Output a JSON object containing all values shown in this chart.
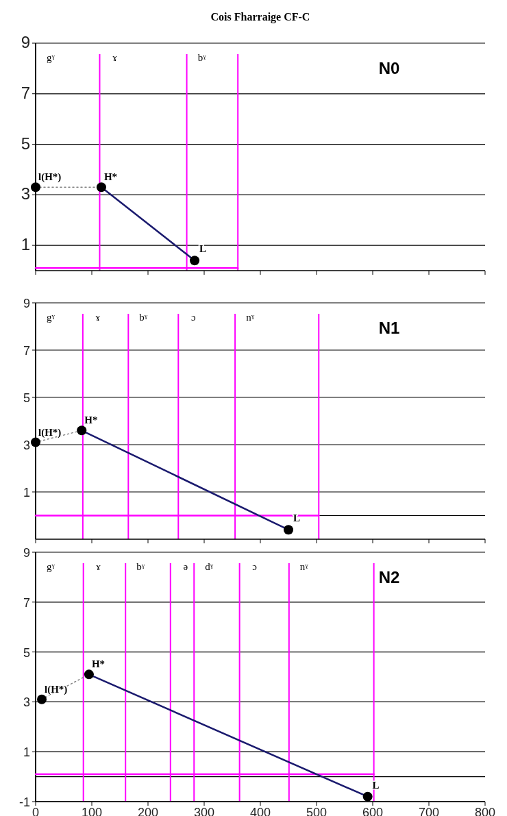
{
  "chart_data": [
    {
      "type": "line",
      "title": "Cois Fharraige CF-C",
      "subtitle": "N0",
      "xlim": [
        0,
        800
      ],
      "xticks": [
        0,
        100,
        200,
        300,
        400,
        500,
        600,
        700,
        800
      ],
      "ylim": [
        0,
        9
      ],
      "yticks": [
        1,
        3,
        5,
        7,
        9
      ],
      "grid": "y",
      "tick_labels": "y",
      "series": [
        {
          "color": "#ff00ff",
          "x": [
            0,
            360
          ],
          "values": [
            0.1,
            0.1
          ],
          "marker": "none",
          "line_style": "solid"
        },
        {
          "color": "#808080",
          "x": [
            0,
            117
          ],
          "values": [
            3.3,
            3.3
          ],
          "marker": "none",
          "line_style": "dotted"
        },
        {
          "color": "#1a1a6e",
          "x": [
            117,
            283
          ],
          "values": [
            3.3,
            0.4
          ],
          "marker": "none",
          "line_style": "solid"
        },
        {
          "type": "scatter",
          "color": "#000000",
          "x": [
            0,
            117,
            283
          ],
          "values": [
            3.3,
            3.3,
            0.4
          ],
          "marker": "circle"
        }
      ],
      "ref_lines": [
        {
          "axis": "x",
          "value": 0,
          "color": "#000000",
          "label": "gˠ"
        },
        {
          "axis": "x",
          "value": 114,
          "color": "#ff00ff",
          "label": "ɤ"
        },
        {
          "axis": "x",
          "value": 269,
          "color": "#ff00ff",
          "label": "bˠ"
        },
        {
          "axis": "x",
          "value": 360,
          "color": "#ff00ff"
        }
      ],
      "annotations": [
        {
          "text": "l(H*)",
          "x": 0,
          "y": 3.3
        },
        {
          "text": "H*",
          "x": 117,
          "y": 3.3
        },
        {
          "text": "L",
          "x": 283,
          "y": 0.4
        }
      ]
    },
    {
      "type": "line",
      "subtitle": "N1",
      "xlim": [
        0,
        800
      ],
      "xticks": [
        0,
        100,
        200,
        300,
        400,
        500,
        600,
        700,
        800
      ],
      "ylim": [
        -1,
        9
      ],
      "yticks": [
        1,
        3,
        5,
        7,
        9
      ],
      "grid": "y",
      "tick_labels": "y",
      "series": [
        {
          "color": "#ff00ff",
          "x": [
            0,
            504
          ],
          "values": [
            0,
            0
          ],
          "marker": "none",
          "line_style": "solid"
        },
        {
          "color": "#808080",
          "x": [
            0,
            82
          ],
          "values": [
            3.1,
            3.6
          ],
          "marker": "none",
          "line_style": "dotted"
        },
        {
          "color": "#1a1a6e",
          "x": [
            82,
            450
          ],
          "values": [
            3.6,
            -0.6
          ],
          "marker": "none",
          "line_style": "solid"
        },
        {
          "type": "scatter",
          "color": "#000000",
          "x": [
            0,
            82,
            450
          ],
          "values": [
            3.1,
            3.6,
            -0.6
          ],
          "marker": "circle"
        }
      ],
      "ref_lines": [
        {
          "axis": "y",
          "value": 0,
          "color": "#000000"
        },
        {
          "axis": "x",
          "value": 0,
          "color": "#000000",
          "label": "gˠ"
        },
        {
          "axis": "x",
          "value": 84,
          "color": "#ff00ff",
          "label": "ɤ"
        },
        {
          "axis": "x",
          "value": 165,
          "color": "#ff00ff",
          "label": "bˠ"
        },
        {
          "axis": "x",
          "value": 254,
          "color": "#ff00ff",
          "label": "ɔ"
        },
        {
          "axis": "x",
          "value": 355,
          "color": "#ff00ff",
          "label": "nˠ"
        },
        {
          "axis": "x",
          "value": 504,
          "color": "#ff00ff"
        }
      ],
      "annotations": [
        {
          "text": "l(H*)",
          "x": 0,
          "y": 3.1
        },
        {
          "text": "H*",
          "x": 82,
          "y": 3.6
        },
        {
          "text": "L",
          "x": 450,
          "y": -0.6
        }
      ]
    },
    {
      "type": "line",
      "subtitle": "N2",
      "xlim": [
        0,
        800
      ],
      "xticks": [
        0,
        100,
        200,
        300,
        400,
        500,
        600,
        700,
        800
      ],
      "ylim": [
        -1,
        9
      ],
      "yticks": [
        -1,
        1,
        3,
        5,
        7,
        9
      ],
      "grid": "y",
      "series": [
        {
          "color": "#ff00ff",
          "x": [
            0,
            602
          ],
          "values": [
            0.1,
            0.1
          ],
          "marker": "none",
          "line_style": "solid"
        },
        {
          "color": "#808080",
          "x": [
            11,
            95
          ],
          "values": [
            3.1,
            4.1
          ],
          "marker": "none",
          "line_style": "dotted"
        },
        {
          "color": "#1a1a6e",
          "x": [
            95,
            591
          ],
          "values": [
            4.1,
            -0.8
          ],
          "marker": "none",
          "line_style": "solid"
        },
        {
          "type": "scatter",
          "color": "#000000",
          "x": [
            11,
            95,
            591
          ],
          "values": [
            3.1,
            4.1,
            -0.8
          ],
          "marker": "circle"
        }
      ],
      "ref_lines": [
        {
          "axis": "y",
          "value": 0,
          "color": "#000000"
        },
        {
          "axis": "x",
          "value": 0,
          "color": "#000000",
          "label": "gˠ"
        },
        {
          "axis": "x",
          "value": 85,
          "color": "#ff00ff",
          "label": "ɤ"
        },
        {
          "axis": "x",
          "value": 160,
          "color": "#ff00ff",
          "label": "bˠ"
        },
        {
          "axis": "x",
          "value": 240,
          "color": "#ff00ff",
          "label": "ə"
        },
        {
          "axis": "x",
          "value": 282,
          "color": "#ff00ff",
          "label": "dˠ"
        },
        {
          "axis": "x",
          "value": 363,
          "color": "#ff00ff",
          "label": "ɔ"
        },
        {
          "axis": "x",
          "value": 451,
          "color": "#ff00ff",
          "label": "nˠ"
        },
        {
          "axis": "x",
          "value": 602,
          "color": "#ff00ff"
        }
      ],
      "annotations": [
        {
          "text": "l(H*)",
          "x": 11,
          "y": 3.1
        },
        {
          "text": "H*",
          "x": 95,
          "y": 4.1
        },
        {
          "text": "L",
          "x": 591,
          "y": -0.8
        }
      ]
    }
  ]
}
